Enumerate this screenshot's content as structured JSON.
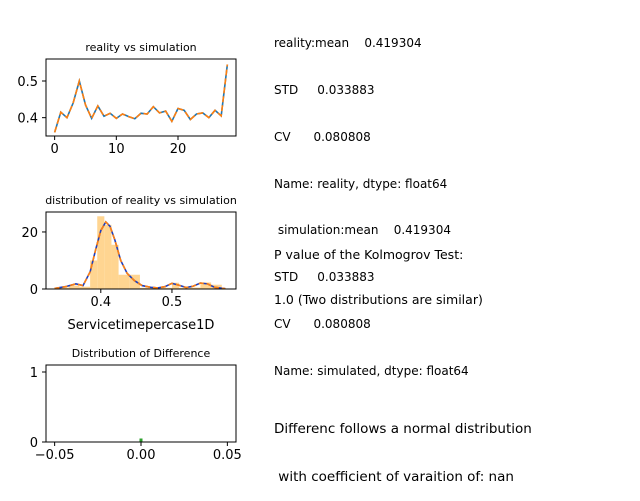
{
  "text_panels": {
    "stats_lines": [
      "reality:mean    0.419304",
      "STD     0.033883",
      "CV      0.080808",
      "Name: reality, dtype: float64",
      " simulation:mean    0.419304",
      "STD     0.033883",
      "CV      0.080808",
      "Name: simulated, dtype: float64"
    ],
    "ks_lines": [
      "P value of the Kolmogrov Test:",
      "1.0 (Two distributions are similar)"
    ],
    "diff_lines": [
      "Differenc follows a normal distribution",
      " with coefficient of varaition of: nan"
    ]
  },
  "colors": {
    "reality": "#1f77b4",
    "simulation": "#ff7f0e",
    "hist_fill": "#ffd591",
    "kde_reality": "#1f3fbf",
    "kde_simulation": "#ff7f0e",
    "difference": "#2ca02c"
  },
  "chart_data": [
    {
      "type": "line",
      "title": "reality vs simulation",
      "xlabel": "",
      "ylabel": "",
      "xlim": [
        -1.4,
        29.4
      ],
      "ylim": [
        0.35,
        0.56
      ],
      "xticks": [
        0,
        10,
        20
      ],
      "xtick_labels": [
        "0",
        "10",
        "20"
      ],
      "yticks": [
        0.4,
        0.5
      ],
      "ytick_labels": [
        "0.4",
        "0.5"
      ],
      "grid": false,
      "x": [
        0,
        1,
        2,
        3,
        4,
        5,
        6,
        7,
        8,
        9,
        10,
        11,
        12,
        13,
        14,
        15,
        16,
        17,
        18,
        19,
        20,
        21,
        22,
        23,
        24,
        25,
        26,
        27,
        28
      ],
      "series": [
        {
          "color_key": "reality",
          "values": [
            0.36,
            0.415,
            0.4,
            0.44,
            0.5,
            0.435,
            0.398,
            0.432,
            0.404,
            0.412,
            0.398,
            0.41,
            0.403,
            0.397,
            0.412,
            0.41,
            0.43,
            0.413,
            0.418,
            0.39,
            0.425,
            0.42,
            0.395,
            0.41,
            0.413,
            0.4,
            0.42,
            0.405,
            0.545
          ]
        },
        {
          "color_key": "simulation",
          "values": [
            0.36,
            0.415,
            0.4,
            0.44,
            0.5,
            0.435,
            0.398,
            0.432,
            0.404,
            0.412,
            0.398,
            0.41,
            0.403,
            0.397,
            0.412,
            0.41,
            0.43,
            0.413,
            0.418,
            0.39,
            0.425,
            0.42,
            0.395,
            0.41,
            0.413,
            0.4,
            0.42,
            0.405,
            0.545
          ]
        }
      ]
    },
    {
      "type": "area",
      "title": "distribution of reality vs simulation",
      "xlabel": "Servicetimepercase1D",
      "ylabel": "",
      "xlim": [
        0.323,
        0.59
      ],
      "ylim": [
        0,
        27
      ],
      "xticks": [
        0.4,
        0.5
      ],
      "xtick_labels": [
        "0.4",
        "0.5"
      ],
      "yticks": [
        0,
        20
      ],
      "ytick_labels": [
        "0",
        "20"
      ],
      "grid": false,
      "histogram": {
        "color_key": "hist_fill",
        "bin_edges": [
          0.34,
          0.355,
          0.37,
          0.385,
          0.395,
          0.405,
          0.415,
          0.425,
          0.44,
          0.455,
          0.47,
          0.485,
          0.5,
          0.51,
          0.525,
          0.54,
          0.555,
          0.57
        ],
        "counts": [
          0.5,
          1.2,
          0.8,
          10,
          25.5,
          22.5,
          15.5,
          5,
          5,
          0.4,
          0.3,
          0.4,
          2.2,
          0.4,
          0.5,
          2.3,
          1.5
        ]
      },
      "kde": [
        {
          "color_key": "kde_reality",
          "x": [
            0.335,
            0.35,
            0.365,
            0.375,
            0.385,
            0.393,
            0.4,
            0.407,
            0.413,
            0.42,
            0.428,
            0.437,
            0.447,
            0.458,
            0.47,
            0.48,
            0.49,
            0.5,
            0.51,
            0.52,
            0.53,
            0.54,
            0.55,
            0.56,
            0.575
          ],
          "y": [
            0.2,
            0.8,
            1.8,
            1.2,
            6,
            14,
            20.5,
            23.5,
            22,
            17,
            10,
            5.5,
            3,
            1.2,
            0.6,
            0.4,
            0.8,
            2,
            1.3,
            0.5,
            1,
            2.1,
            1.8,
            0.6,
            0.1
          ]
        },
        {
          "color_key": "kde_simulation",
          "x": [
            0.335,
            0.35,
            0.365,
            0.375,
            0.385,
            0.393,
            0.4,
            0.407,
            0.413,
            0.42,
            0.428,
            0.437,
            0.447,
            0.458,
            0.47,
            0.48,
            0.49,
            0.5,
            0.51,
            0.52,
            0.53,
            0.54,
            0.55,
            0.56,
            0.575
          ],
          "y": [
            0.2,
            0.8,
            1.8,
            1.2,
            6,
            14,
            20.5,
            23.5,
            22,
            17,
            10,
            5.5,
            3,
            1.2,
            0.6,
            0.4,
            0.8,
            2,
            1.3,
            0.5,
            1,
            2.1,
            1.8,
            0.6,
            0.1
          ]
        }
      ]
    },
    {
      "type": "bar",
      "title": "Distribution of Difference",
      "xlabel": "",
      "ylabel": "",
      "xlim": [
        -0.055,
        0.055
      ],
      "ylim": [
        0,
        1.1
      ],
      "xticks": [
        -0.05,
        0.0,
        0.05
      ],
      "xtick_labels": [
        "−0.05",
        "0.00",
        "0.05"
      ],
      "yticks": [
        0,
        1
      ],
      "ytick_labels": [
        "0",
        "1"
      ],
      "grid": false,
      "x": [
        0.0
      ],
      "values": [
        0.05
      ],
      "color_key": "difference"
    }
  ]
}
